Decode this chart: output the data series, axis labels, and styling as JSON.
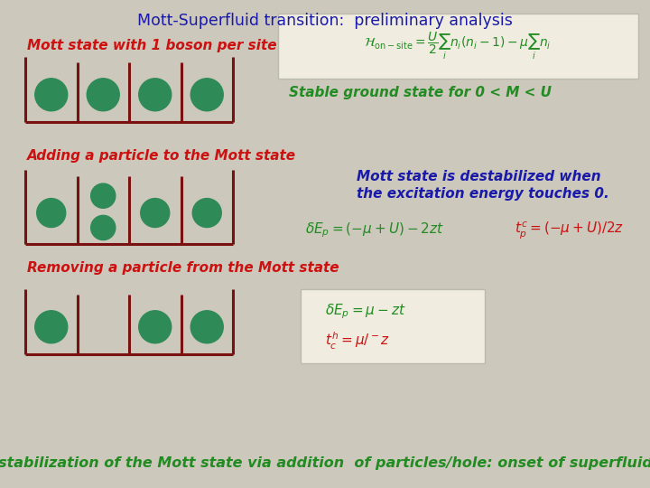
{
  "title": "Mott-Superfluid transition:  preliminary analysis",
  "title_color": "#1a1aaa",
  "bg_color": "#ccc8bc",
  "label1": "Mott state with 1 boson per site",
  "label2": "Adding a particle to the Mott state",
  "label3": "Removing a particle from the Mott state",
  "label_color": "#cc1111",
  "stable_text": "Stable ground state for 0 < Μ < U",
  "destab_text1": "Mott state is destabilized when",
  "destab_text2": "the excitation energy touches 0.",
  "destab_text_color": "#1a1aaa",
  "stable_text_color": "#228B22",
  "bottom_text": "Destabilization of the Mott state via addition  of particles/hole: onset of superfluidity",
  "bottom_text_color": "#228B22",
  "boson_color": "#2e8b57",
  "box_color": "#7a1010",
  "eq1_text": "$\\mathcal{H}_{\\mathrm{on-site}} = \\dfrac{U}{2}\\sum_i n_i(n_i-1)-\\mu\\sum_i n_i$",
  "eq2_text": "$\\delta E_p = (-\\mu + U) - 2zt$",
  "eq3_text": "$t_p^c = (-\\mu + U)/2z$",
  "eq4_text": "$\\delta E_p = \\mu -   zt$",
  "eq5_text": "$t_c^h = \\mu/^-z$",
  "eq_color_green": "#228B22",
  "eq_color_red": "#cc1111",
  "eq_color_blue": "#1a1aaa"
}
